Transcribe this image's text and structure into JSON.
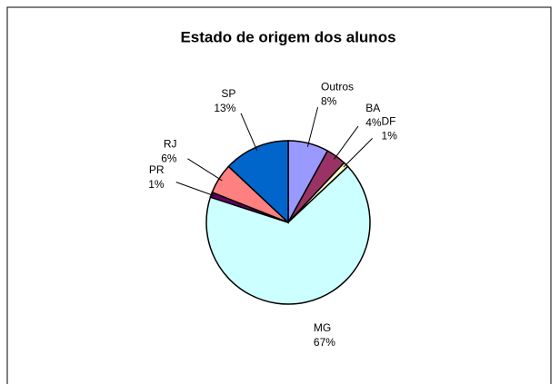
{
  "chart_data": {
    "type": "pie",
    "title": "Estado de origem dos alunos",
    "categories": [
      "Outros",
      "BA",
      "DF",
      "MG",
      "PR",
      "RJ",
      "SP"
    ],
    "values": [
      8,
      4,
      1,
      67,
      1,
      6,
      13
    ],
    "value_labels": [
      "8%",
      "4%",
      "1%",
      "67%",
      "1%",
      "6%",
      "13%"
    ],
    "colors": [
      "#9999ff",
      "#993366",
      "#ffffcc",
      "#ccffff",
      "#660066",
      "#ff8080",
      "#0066cc"
    ]
  }
}
